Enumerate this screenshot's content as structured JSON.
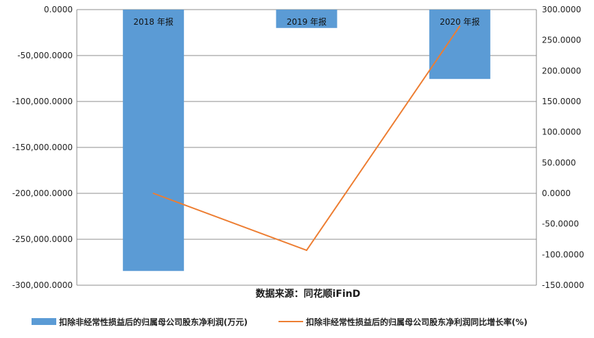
{
  "chart_data": {
    "type": "bar",
    "categories": [
      "2018 年报",
      "2019 年报",
      "2020 年报"
    ],
    "series": [
      {
        "name": "扣除非经常性损益后的归属母公司股东净利润(万元)",
        "type": "bar",
        "axis": "left",
        "values": [
          -284500,
          -20000,
          -75500
        ],
        "color": "#5b9bd5"
      },
      {
        "name": "扣除非经常性损益后的归属母公司股东净利润同比增长率(%)",
        "type": "line",
        "axis": "right",
        "values": [
          0,
          -93,
          273
        ],
        "color": "#ed7d31"
      }
    ],
    "ylim_left": [
      -300000,
      0
    ],
    "yticks_left": [
      "0.0000",
      "-50,000.0000",
      "-100,000.0000",
      "-150,000.0000",
      "-200,000.0000",
      "-250,000.0000",
      "-300,000.0000"
    ],
    "ylim_right": [
      -150,
      300
    ],
    "yticks_right": [
      "300.0000",
      "250.0000",
      "200.0000",
      "150.0000",
      "100.0000",
      "50.0000",
      "0.0000",
      "-50.0000",
      "-100.0000",
      "-150.0000"
    ],
    "grid": true,
    "legend_position": "bottom",
    "source": "数据来源：同花顺iFinD"
  }
}
